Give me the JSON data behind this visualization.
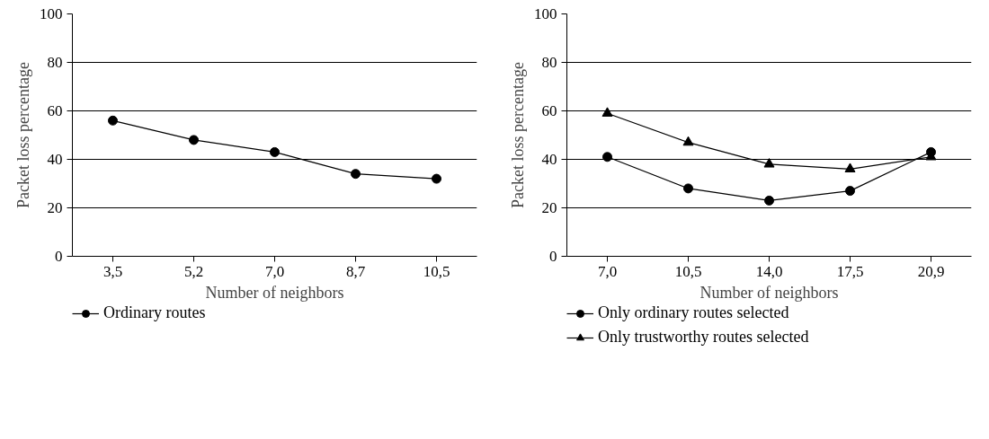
{
  "chart_data": [
    {
      "type": "line",
      "xlabel": "Number of neighbors",
      "ylabel": "Packet loss percentage",
      "categories": [
        "3,5",
        "5,2",
        "7,0",
        "8,7",
        "10,5"
      ],
      "ylim": [
        0,
        100
      ],
      "yticks": [
        0,
        20,
        40,
        60,
        80,
        100
      ],
      "grid": "y",
      "legend": "bottom",
      "marker": "circle",
      "series": [
        {
          "name": "Ordinary routes",
          "color": "#000000",
          "values": [
            56,
            48,
            43,
            34,
            32
          ]
        }
      ]
    },
    {
      "type": "line",
      "xlabel": "Number of neighbors",
      "ylabel": "Packet loss percentage",
      "categories": [
        "7,0",
        "10,5",
        "14,0",
        "17,5",
        "20,9"
      ],
      "ylim": [
        0,
        100
      ],
      "yticks": [
        0,
        20,
        40,
        60,
        80,
        100
      ],
      "grid": "y",
      "legend": "bottom",
      "series": [
        {
          "name": "Only ordinary routes selected",
          "color": "#000000",
          "marker": "circle",
          "values": [
            41,
            28,
            23,
            27,
            43
          ]
        },
        {
          "name": "Only trustworthy routes selected",
          "color": "#000000",
          "marker": "triangle",
          "values": [
            59,
            47,
            38,
            36,
            41
          ]
        }
      ]
    }
  ]
}
